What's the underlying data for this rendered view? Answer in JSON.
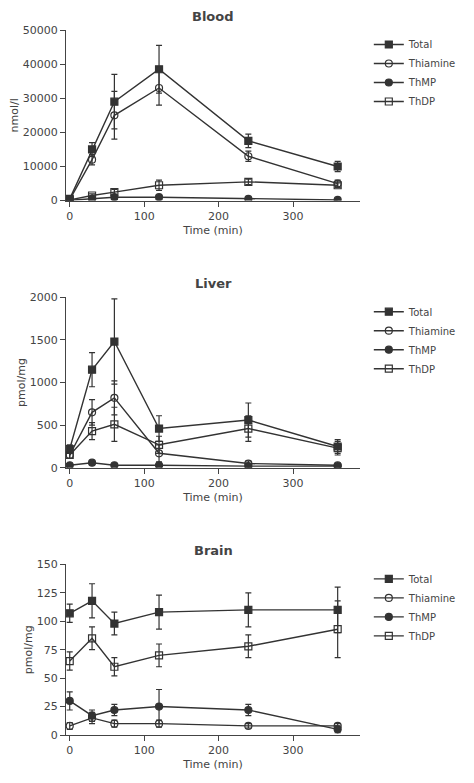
{
  "chart_data": [
    {
      "type": "line",
      "title": "Blood",
      "x_label": "Time (min)",
      "y_label": "nmol/l",
      "x": [
        0,
        30,
        60,
        120,
        240,
        360
      ],
      "xlim": [
        -5,
        390
      ],
      "xticks": [
        0,
        100,
        200,
        300
      ],
      "ylim": [
        0,
        50000
      ],
      "yticks": [
        0,
        10000,
        20000,
        30000,
        40000,
        50000
      ],
      "grid": false,
      "legend": "right",
      "series": [
        {
          "name": "Total",
          "color": "#333333",
          "marker": "square",
          "values": [
            500,
            15000,
            29000,
            38500,
            17500,
            10000
          ],
          "errors": [
            200,
            2000,
            8000,
            7000,
            2000,
            1500
          ]
        },
        {
          "name": "Thiamine",
          "color": "#333333",
          "marker": "circle-open",
          "values": [
            300,
            12000,
            25000,
            33000,
            13000,
            5000
          ],
          "errors": [
            100,
            1500,
            7000,
            5000,
            1500,
            1000
          ]
        },
        {
          "name": "ThMP",
          "color": "#333333",
          "marker": "circle",
          "values": [
            100,
            500,
            1000,
            1000,
            500,
            200
          ],
          "errors": [
            50,
            200,
            300,
            300,
            150,
            100
          ]
        },
        {
          "name": "ThDP",
          "color": "#333333",
          "marker": "square-open",
          "values": [
            200,
            1500,
            2500,
            4500,
            5500,
            4500
          ],
          "errors": [
            100,
            500,
            800,
            1500,
            800,
            700
          ]
        }
      ]
    },
    {
      "type": "line",
      "title": "Liver",
      "x_label": "Time (min)",
      "y_label": "pmol/mg",
      "x": [
        0,
        30,
        60,
        120,
        240,
        360
      ],
      "xlim": [
        -5,
        390
      ],
      "xticks": [
        0,
        100,
        200,
        300
      ],
      "ylim": [
        0,
        2000
      ],
      "yticks": [
        0,
        500,
        1000,
        1500,
        2000
      ],
      "grid": false,
      "legend": "right",
      "series": [
        {
          "name": "Total",
          "color": "#333333",
          "marker": "square",
          "values": [
            220,
            1150,
            1480,
            460,
            560,
            250
          ],
          "errors": [
            50,
            200,
            500,
            150,
            200,
            80
          ]
        },
        {
          "name": "Thiamine",
          "color": "#333333",
          "marker": "circle-open",
          "values": [
            150,
            650,
            820,
            170,
            50,
            30
          ],
          "errors": [
            40,
            150,
            200,
            100,
            30,
            20
          ]
        },
        {
          "name": "ThMP",
          "color": "#333333",
          "marker": "circle",
          "values": [
            30,
            60,
            30,
            30,
            20,
            20
          ],
          "errors": [
            10,
            20,
            10,
            10,
            8,
            8
          ]
        },
        {
          "name": "ThDP",
          "color": "#333333",
          "marker": "square-open",
          "values": [
            150,
            430,
            510,
            270,
            460,
            230
          ],
          "errors": [
            40,
            100,
            200,
            100,
            150,
            80
          ]
        }
      ]
    },
    {
      "type": "line",
      "title": "Brain",
      "x_label": "Time (min)",
      "y_label": "pmol/mg",
      "x": [
        0,
        30,
        60,
        120,
        240,
        360
      ],
      "xlim": [
        -5,
        390
      ],
      "xticks": [
        0,
        100,
        200,
        300
      ],
      "ylim": [
        0,
        150
      ],
      "yticks": [
        0,
        25,
        50,
        75,
        100,
        125,
        150
      ],
      "grid": false,
      "legend": "right",
      "series": [
        {
          "name": "Total",
          "color": "#333333",
          "marker": "square",
          "values": [
            107,
            118,
            98,
            108,
            110,
            110
          ],
          "errors": [
            8,
            15,
            10,
            15,
            15,
            20
          ]
        },
        {
          "name": "Thiamine",
          "color": "#333333",
          "marker": "circle-open",
          "values": [
            8,
            15,
            10,
            10,
            8,
            8
          ],
          "errors": [
            3,
            5,
            3,
            3,
            2,
            2
          ]
        },
        {
          "name": "ThMP",
          "color": "#333333",
          "marker": "circle",
          "values": [
            30,
            17,
            22,
            25,
            22,
            5
          ],
          "errors": [
            8,
            5,
            5,
            15,
            5,
            3
          ]
        },
        {
          "name": "ThDP",
          "color": "#333333",
          "marker": "square-open",
          "values": [
            65,
            85,
            60,
            70,
            78,
            93
          ],
          "errors": [
            8,
            10,
            8,
            10,
            10,
            25
          ]
        }
      ]
    }
  ]
}
